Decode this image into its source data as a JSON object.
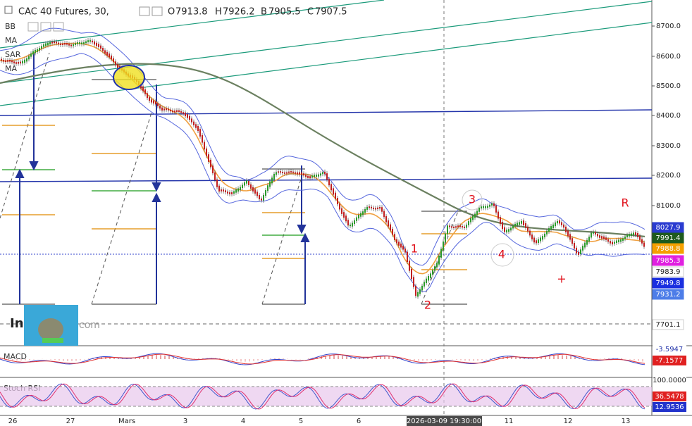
{
  "header": {
    "symbol": "CAC 40 Futures, 30,",
    "open_label": "O",
    "open": "7913.8",
    "high_label": "H",
    "high": "7926.2",
    "low_label": "B",
    "low": "7905.5",
    "close_label": "C",
    "close": "7907.5"
  },
  "indicators": [
    "BB",
    "MA",
    "SAR",
    "MA"
  ],
  "price_axis": [
    "8700.0",
    "8600.0",
    "8500.0",
    "8400.0",
    "8300.0",
    "8200.0",
    "8100.0"
  ],
  "price_tags": [
    "8027.9",
    "7991.4",
    "7988.8",
    "7985.3",
    "7983.9",
    "7949.8",
    "7931.2",
    "7701.1"
  ],
  "panels": {
    "macd": {
      "title": "MACD",
      "tags": [
        "-3.5947",
        "-7.1577"
      ]
    },
    "stoch_rsi": {
      "title": "Stoch RSI",
      "tags": [
        "100.0000",
        "36.5478",
        "12.9536"
      ]
    }
  },
  "time_axis": [
    "26",
    "27",
    "Mars",
    "3",
    "4",
    "5",
    "6",
    "11",
    "12",
    "13"
  ],
  "crosshair_time": "2026-03-09 19:30:00",
  "annotations": [
    "1",
    "2",
    "3",
    "4",
    "R",
    "+"
  ],
  "watermark": [
    "In",
    "com"
  ]
}
